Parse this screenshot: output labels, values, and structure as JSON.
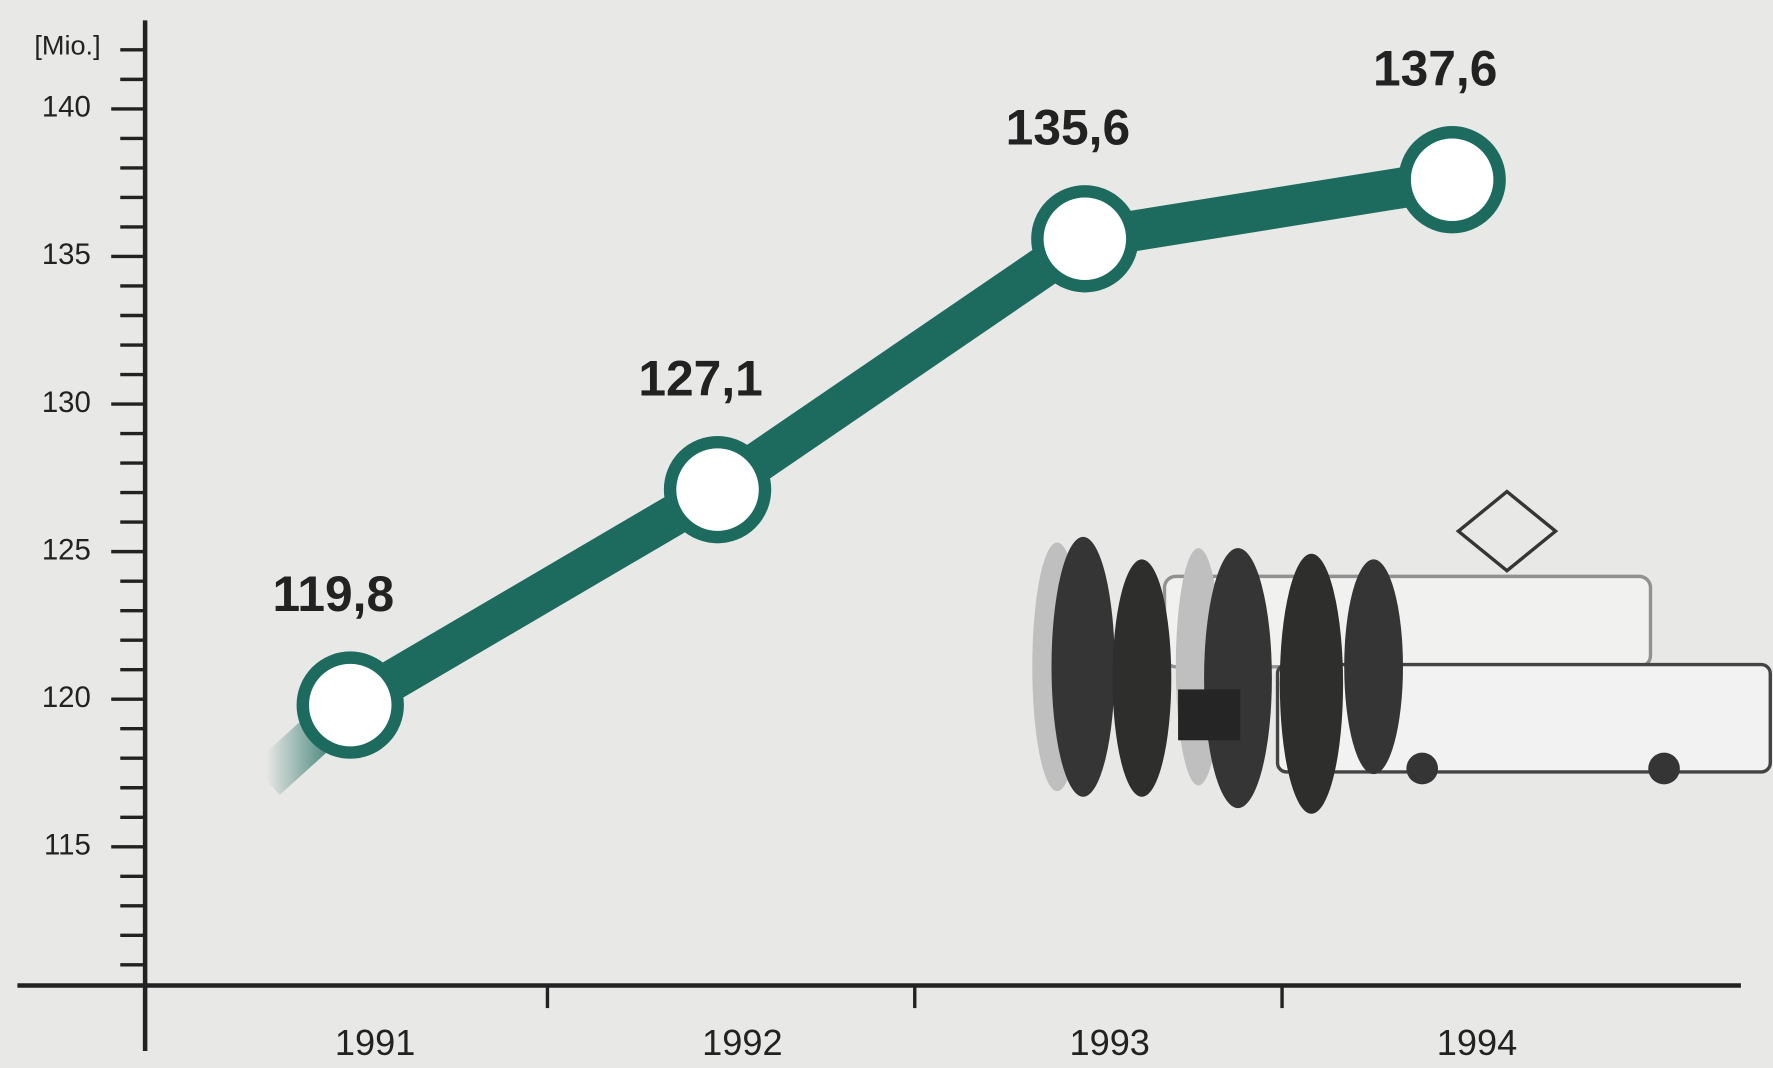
{
  "chart_data": {
    "type": "line",
    "y_unit_label": "[Mio.]",
    "categories": [
      "1991",
      "1992",
      "1993",
      "1994"
    ],
    "values": [
      119.8,
      127.1,
      135.6,
      137.6
    ],
    "value_labels": [
      "119,8",
      "127,1",
      "135,6",
      "137,6"
    ],
    "color": "#1d6b5f",
    "ylim": [
      110.3,
      143
    ],
    "yticks": [
      115,
      120,
      125,
      130,
      135,
      140
    ],
    "minor_yticks": [
      111,
      112,
      113,
      114,
      116,
      117,
      118,
      119,
      121,
      122,
      123,
      124,
      126,
      127,
      128,
      129,
      131,
      132,
      133,
      134,
      136,
      137,
      138,
      139,
      141,
      142
    ]
  }
}
